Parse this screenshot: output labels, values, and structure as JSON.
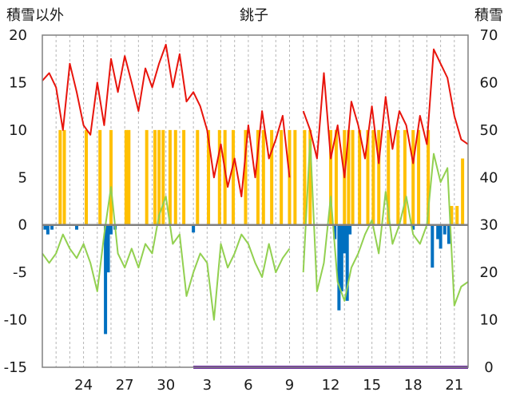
{
  "chart_data": {
    "type": "bar+line",
    "title": "銚子",
    "left_axis_label": "積雪以外",
    "right_axis_label": "積雪",
    "left_ylim": [
      -15,
      20
    ],
    "left_yticks": [
      20,
      15,
      10,
      5,
      0,
      -5,
      -10,
      -15
    ],
    "right_ylim": [
      0,
      70
    ],
    "right_yticks": [
      70,
      60,
      50,
      40,
      30,
      20,
      10,
      0
    ],
    "x_ticks": [
      "24",
      "27",
      "30",
      "3",
      "6",
      "9",
      "12",
      "15",
      "18",
      "21"
    ],
    "x_tick_days": [
      3,
      6,
      9,
      12,
      15,
      18,
      21,
      24,
      27,
      30
    ],
    "x_range_days": [
      0,
      31
    ],
    "grid": "vertical-dashed",
    "colors": {
      "temperature": "#e8140c",
      "other_line": "#92d050",
      "bar_positive": "#ffc000",
      "bar_negative": "#0070c0",
      "snow": "#7030a0",
      "zero_line": "#808080"
    },
    "series": [
      {
        "kind": "line",
        "color": "#e8140c",
        "x": [
          0.0,
          0.5,
          1.0,
          1.5,
          2.0,
          2.5,
          3.0,
          3.5,
          4.0,
          4.5,
          5.0,
          5.5,
          6.0,
          6.5,
          7.0,
          7.5,
          8.0,
          8.5,
          9.0,
          9.5,
          10.0,
          10.5,
          11.0,
          11.5,
          12.0,
          12.5,
          13.0,
          13.5,
          14.0,
          14.5,
          15.0,
          15.5,
          16.0,
          16.5,
          17.0,
          17.5,
          18.0,
          18.5,
          19.0,
          19.5,
          20.0,
          20.5,
          21.0,
          21.5,
          22.0,
          22.5,
          23.0,
          23.5,
          24.0,
          24.5,
          25.0,
          25.5,
          26.0,
          26.5,
          27.0,
          27.5,
          28.0,
          28.5,
          29.0,
          29.5,
          30.0,
          30.5,
          31.0
        ],
        "values": [
          15.2,
          16.0,
          14.5,
          10.0,
          17.0,
          14.0,
          10.5,
          9.5,
          15.0,
          10.5,
          17.5,
          14.0,
          17.8,
          15.0,
          12.0,
          16.5,
          14.5,
          17.0,
          19.0,
          14.5,
          18.0,
          13.0,
          14.0,
          12.5,
          10.0,
          5.0,
          8.5,
          4.0,
          7.0,
          3.0,
          10.5,
          5.0,
          12.0,
          7.0,
          9.0,
          11.5,
          5.0,
          null,
          12.0,
          10.0,
          7.0,
          16.0,
          7.0,
          10.5,
          5.0,
          13.0,
          10.5,
          7.0,
          12.5,
          6.5,
          13.5,
          8.0,
          12.0,
          10.5,
          6.5,
          11.5,
          8.5,
          18.5,
          17.0,
          15.5,
          11.5,
          9.0,
          8.5
        ],
        "axis": "left"
      },
      {
        "kind": "line",
        "color": "#92d050",
        "x": [
          0.0,
          0.5,
          1.0,
          1.5,
          2.0,
          2.5,
          3.0,
          3.5,
          4.0,
          4.5,
          5.0,
          5.5,
          6.0,
          6.5,
          7.0,
          7.5,
          8.0,
          8.5,
          9.0,
          9.5,
          10.0,
          10.5,
          11.0,
          11.5,
          12.0,
          12.5,
          13.0,
          13.5,
          14.0,
          14.5,
          15.0,
          15.5,
          16.0,
          16.5,
          17.0,
          17.5,
          18.0,
          18.5,
          19.0,
          19.5,
          20.0,
          20.5,
          21.0,
          21.5,
          22.0,
          22.5,
          23.0,
          23.5,
          24.0,
          24.5,
          25.0,
          25.5,
          26.0,
          26.5,
          27.0,
          27.5,
          28.0,
          28.5,
          29.0,
          29.5,
          30.0,
          30.5,
          31.0
        ],
        "values": [
          -3.0,
          -4.0,
          -3.0,
          -1.0,
          -2.5,
          -3.5,
          -2.0,
          -4.0,
          -7.0,
          -1.0,
          4.0,
          -3.0,
          -4.5,
          -2.5,
          -4.5,
          -2.0,
          -3.0,
          1.0,
          3.0,
          -2.0,
          -1.0,
          -7.5,
          -5.0,
          -3.0,
          -4.0,
          -10.0,
          -2.0,
          -4.5,
          -3.0,
          -1.0,
          -2.0,
          -4.0,
          -5.5,
          -2.0,
          -5.0,
          -3.5,
          -2.5,
          null,
          -5.0,
          9.0,
          -7.0,
          -4.0,
          3.0,
          -6.0,
          -8.0,
          -4.5,
          -3.0,
          -1.0,
          0.5,
          -3.0,
          3.5,
          -2.0,
          0.0,
          3.0,
          -1.0,
          -2.0,
          0.0,
          7.5,
          4.5,
          6.0,
          -8.5,
          -6.5,
          -6.0
        ],
        "axis": "left"
      },
      {
        "kind": "bar",
        "color": "#ffc000",
        "x": [
          1.3,
          1.6,
          3.2,
          4.2,
          5.0,
          6.1,
          6.3,
          7.6,
          8.2,
          8.5,
          8.8,
          9.3,
          9.7,
          10.3,
          11.3,
          12.1,
          12.9,
          13.3,
          13.9,
          14.8,
          15.7,
          16.1,
          16.7,
          17.4,
          18.0,
          18.4,
          19.1,
          19.5,
          21.0,
          21.4,
          22.0,
          22.3,
          22.6,
          23.1,
          23.7,
          24.1,
          24.5,
          25.2,
          25.9,
          26.4,
          27.0,
          27.4,
          28.1,
          29.8,
          30.2,
          30.6
        ],
        "values": [
          10.0,
          10.0,
          10.0,
          10.0,
          10.0,
          10.0,
          10.0,
          10.0,
          10.0,
          10.0,
          10.0,
          10.0,
          10.0,
          10.0,
          10.0,
          10.0,
          10.0,
          10.0,
          10.0,
          10.0,
          10.0,
          10.0,
          10.0,
          10.0,
          10.0,
          10.0,
          10.0,
          10.0,
          10.0,
          10.0,
          10.0,
          10.0,
          10.0,
          10.0,
          10.0,
          10.0,
          10.0,
          10.0,
          10.0,
          10.0,
          10.0,
          10.0,
          10.0,
          2.0,
          2.0,
          7.0
        ],
        "axis": "left"
      },
      {
        "kind": "bar",
        "color": "#0070c0",
        "x": [
          0.2,
          0.4,
          0.7,
          2.5,
          4.6,
          4.8,
          5.0,
          5.3,
          11.0,
          21.3,
          21.6,
          21.8,
          22.0,
          22.2,
          22.4,
          27.0,
          28.4,
          28.8,
          29.0,
          29.3,
          29.6
        ],
        "values": [
          -0.5,
          -1.0,
          -0.5,
          -0.5,
          -11.5,
          -5.0,
          -1.0,
          -0.5,
          -0.8,
          -1.5,
          -9.0,
          -7.0,
          -3.0,
          -8.0,
          -1.0,
          -0.5,
          -4.5,
          -1.5,
          -2.5,
          -1.0,
          -2.0
        ],
        "axis": "left"
      },
      {
        "kind": "line",
        "color": "#7030a0",
        "x": [
          11.0,
          31.0
        ],
        "values": [
          0,
          0
        ],
        "axis": "right"
      }
    ]
  }
}
